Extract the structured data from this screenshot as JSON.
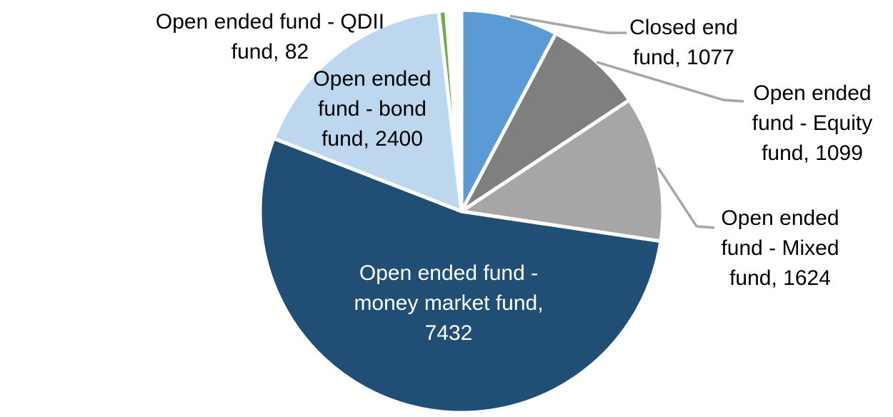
{
  "chart_data": {
    "type": "pie",
    "title": "",
    "legend": "none",
    "background_color": "#FFFFFF",
    "leader_line_color": "#A6A6A6",
    "slice_border_color": "#FFFFFF",
    "start_angle_deg": 0,
    "direction": "clockwise",
    "slices": [
      {
        "id": "closed-end-fund",
        "label": "Closed end fund",
        "value": 1077,
        "color": "#5B9BD5",
        "label_lines": [
          "Closed end",
          "fund, 1077"
        ],
        "label_placement": "outside-callout",
        "label_color": "#000000"
      },
      {
        "id": "open-ended-equity-fund",
        "label": "Open ended fund - Equity fund",
        "value": 1099,
        "color": "#7F7F7F",
        "label_lines": [
          "Open ended",
          "fund - Equity",
          "fund, 1099"
        ],
        "label_placement": "outside-callout",
        "label_color": "#000000"
      },
      {
        "id": "open-ended-mixed-fund",
        "label": "Open ended fund - Mixed fund",
        "value": 1624,
        "color": "#A6A6A6",
        "label_lines": [
          "Open ended",
          "fund - Mixed",
          "fund, 1624"
        ],
        "label_placement": "outside-callout",
        "label_color": "#000000"
      },
      {
        "id": "open-ended-money-market-fund",
        "label": "Open ended fund - money market fund",
        "value": 7432,
        "color": "#214E74",
        "label_lines": [
          "Open ended fund -",
          "money market fund,",
          "7432"
        ],
        "label_placement": "inside",
        "label_color": "#FFFFFF"
      },
      {
        "id": "open-ended-bond-fund",
        "label": "Open ended fund - bond fund",
        "value": 2400,
        "color": "#BDD7EE",
        "label_lines": [
          "Open ended",
          "fund - bond",
          "fund, 2400"
        ],
        "label_placement": "outside",
        "label_color": "#000000"
      },
      {
        "id": "open-ended-qdii-fund",
        "label": "Open ended fund - QDII fund",
        "value": 82,
        "color": "#70AD47",
        "label_lines": [
          "Open ended fund - QDII",
          "fund, 82"
        ],
        "label_placement": "outside",
        "label_color": "#000000"
      }
    ]
  }
}
